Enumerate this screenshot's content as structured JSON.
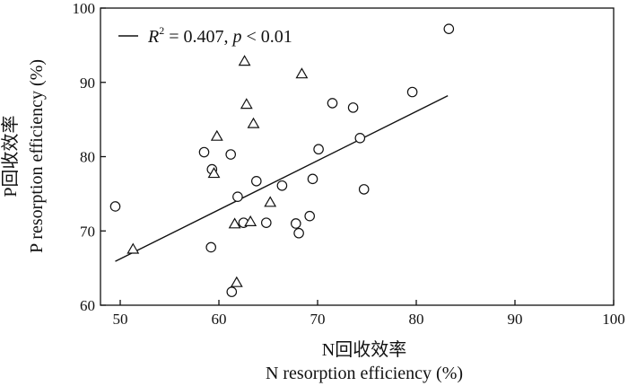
{
  "chart_data": {
    "type": "scatter",
    "xlabel_cn": "N回收效率",
    "xlabel_en": "N resorption efficiency (%)",
    "ylabel_cn": "P回收效率",
    "ylabel_en": "P resorption efficiency (%)",
    "xlim": [
      48,
      100
    ],
    "ylim": [
      60,
      100
    ],
    "xticks": [
      50,
      60,
      70,
      80,
      90,
      100
    ],
    "yticks": [
      60,
      70,
      80,
      90,
      100
    ],
    "legend": {
      "label_prefix": "R",
      "label_sup": "2",
      "label_mid": " = 0.407, ",
      "label_p": "p",
      "label_end": " < 0.01",
      "position": "top-left"
    },
    "fit_line": {
      "x": [
        49.5,
        83.2
      ],
      "y": [
        65.9,
        88.2
      ]
    },
    "series": [
      {
        "marker": "circle",
        "points": [
          [
            49.5,
            73.3
          ],
          [
            58.5,
            80.6
          ],
          [
            59.3,
            78.3
          ],
          [
            59.2,
            67.8
          ],
          [
            61.2,
            80.3
          ],
          [
            61.9,
            74.6
          ],
          [
            62.5,
            71.1
          ],
          [
            61.3,
            61.8
          ],
          [
            63.8,
            76.7
          ],
          [
            64.8,
            71.1
          ],
          [
            66.4,
            76.1
          ],
          [
            67.8,
            71.0
          ],
          [
            68.1,
            69.7
          ],
          [
            69.2,
            72.0
          ],
          [
            69.5,
            77.0
          ],
          [
            70.1,
            81.0
          ],
          [
            71.5,
            87.2
          ],
          [
            73.6,
            86.6
          ],
          [
            74.3,
            82.5
          ],
          [
            74.7,
            75.6
          ],
          [
            79.6,
            88.7
          ],
          [
            83.3,
            97.2
          ]
        ]
      },
      {
        "marker": "triangle",
        "points": [
          [
            51.3,
            67.5
          ],
          [
            59.5,
            77.7
          ],
          [
            59.8,
            82.7
          ],
          [
            61.6,
            70.9
          ],
          [
            61.8,
            63.0
          ],
          [
            62.6,
            92.8
          ],
          [
            62.8,
            87.0
          ],
          [
            63.2,
            71.2
          ],
          [
            63.5,
            84.4
          ],
          [
            65.2,
            73.8
          ],
          [
            68.4,
            91.1
          ]
        ]
      }
    ]
  }
}
